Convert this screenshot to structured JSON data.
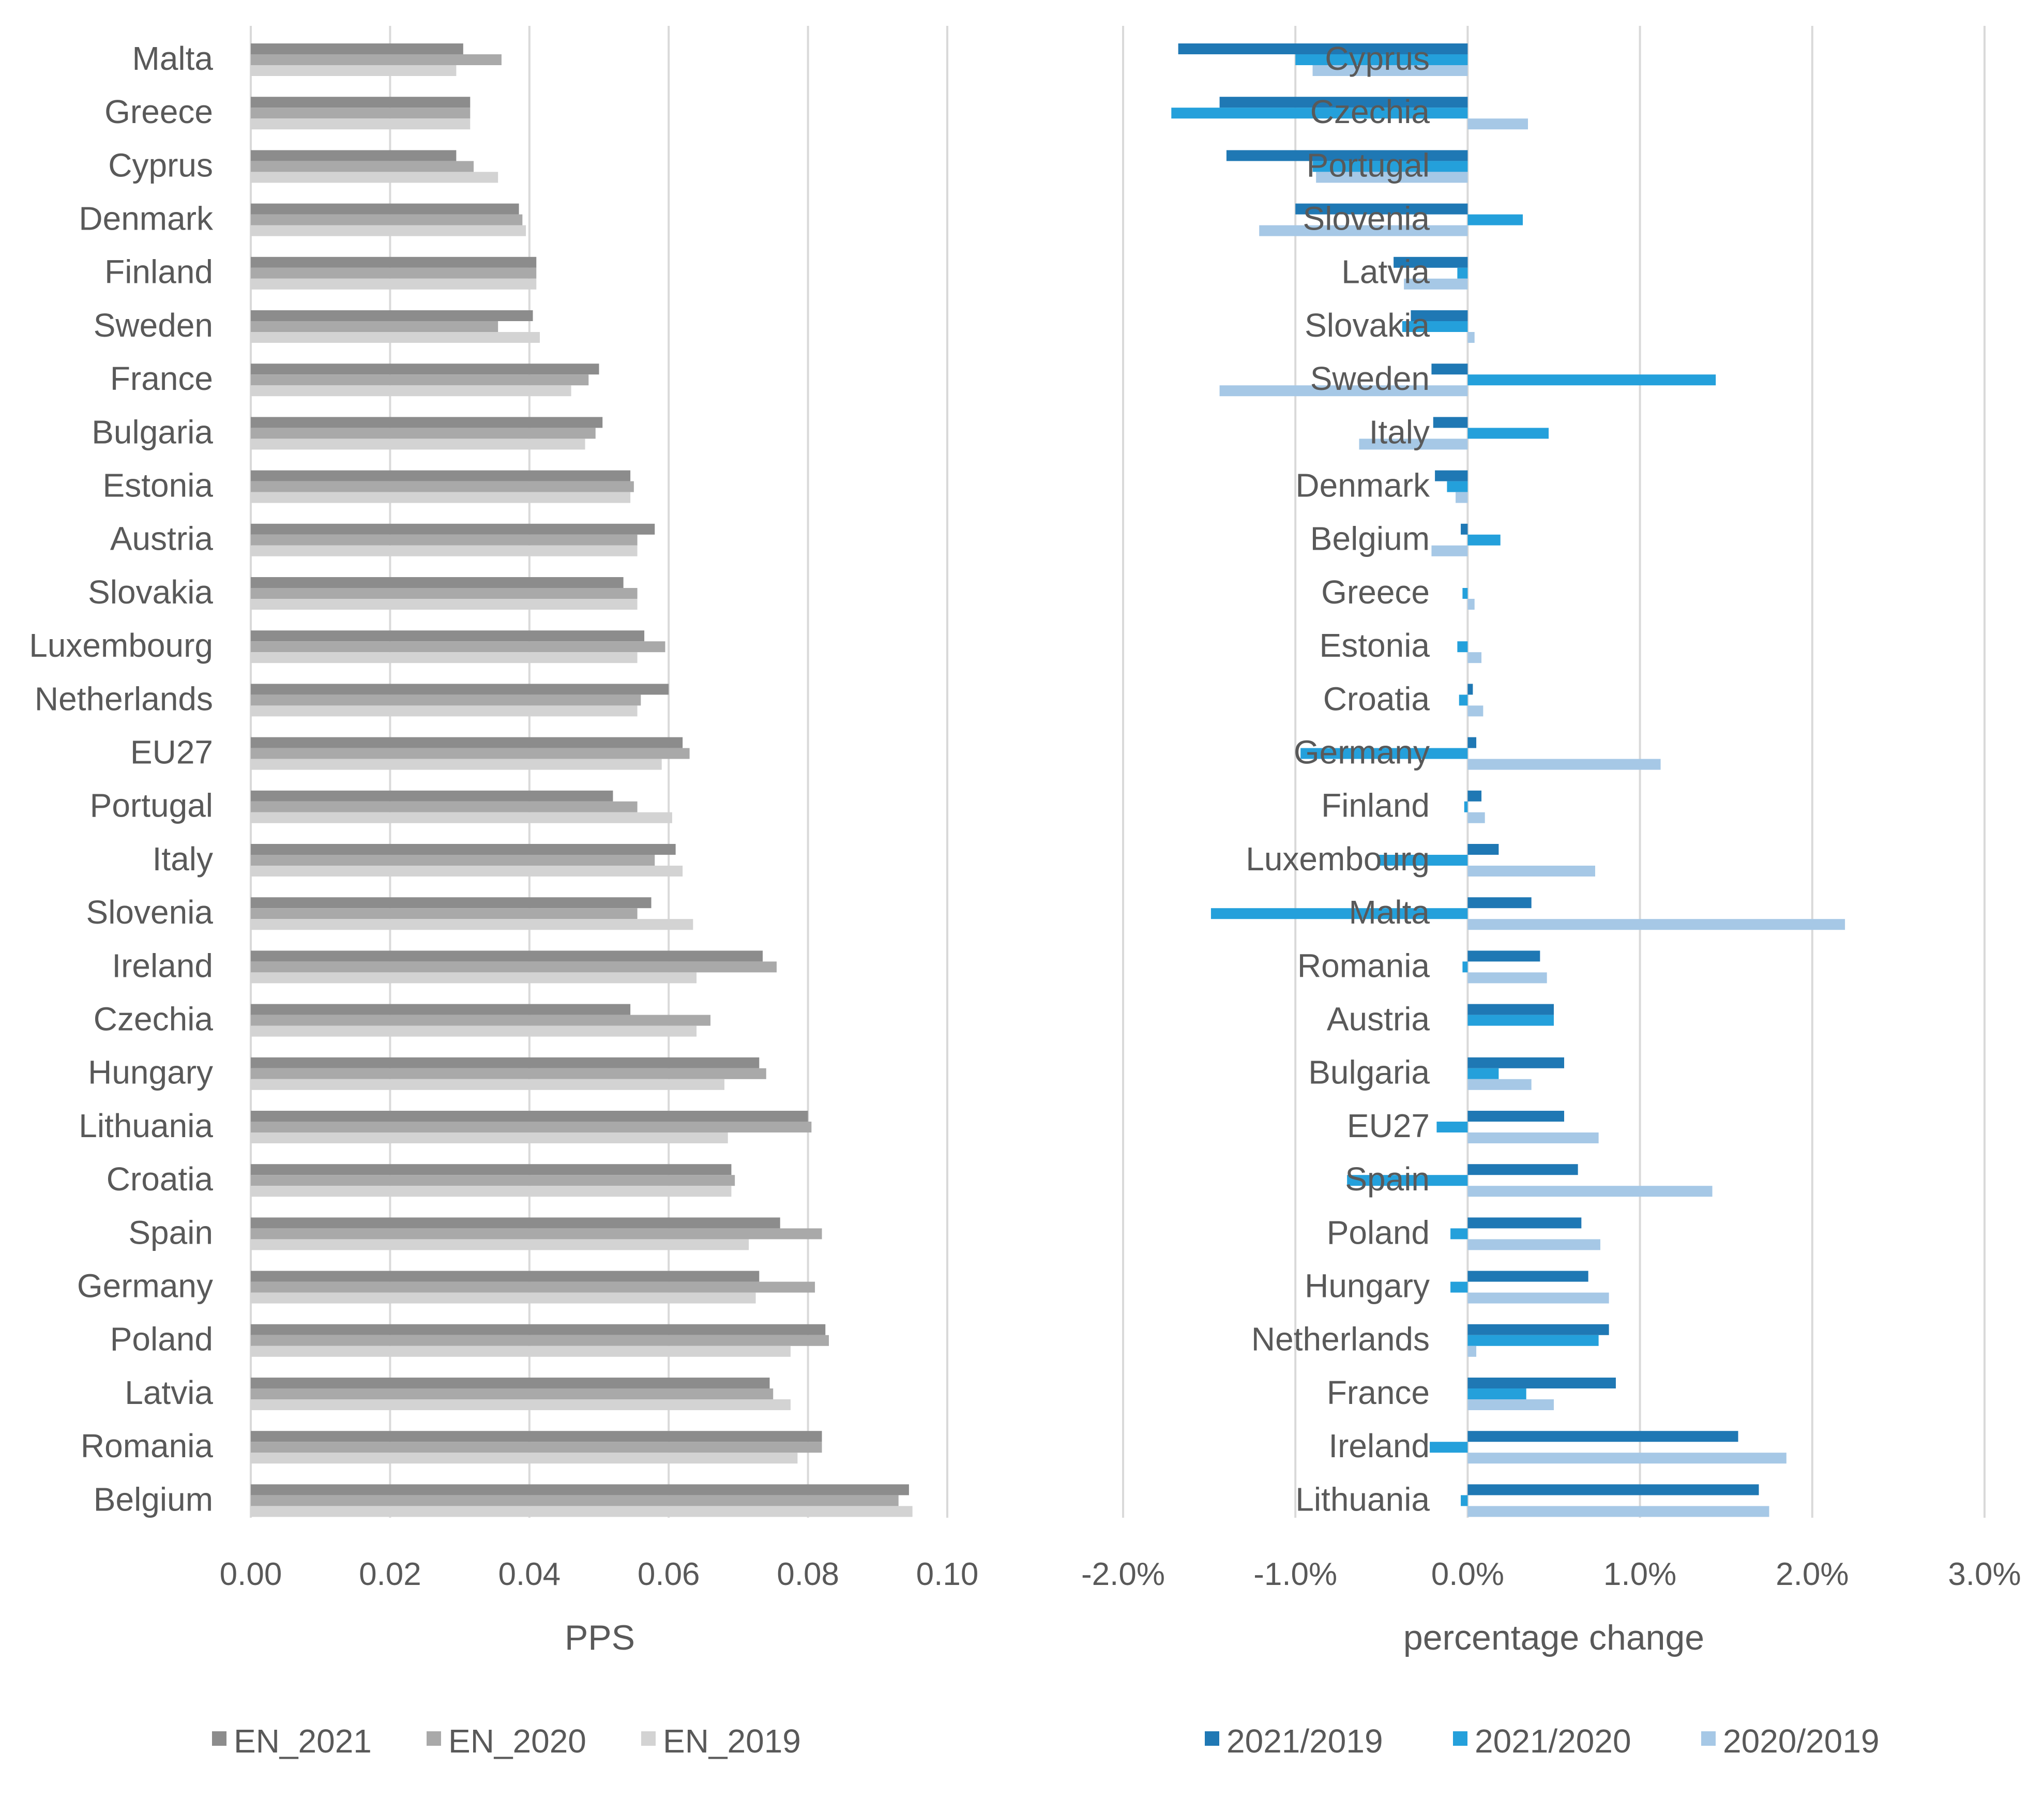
{
  "chart_data": [
    {
      "type": "bar",
      "orientation": "horizontal",
      "title": "",
      "xlabel": "PPS",
      "ylabel": "",
      "xlim": [
        0,
        0.1
      ],
      "xticks": [
        "0.00",
        "0.02",
        "0.04",
        "0.06",
        "0.08",
        "0.10"
      ],
      "grid": true,
      "legend_position": "bottom",
      "categories": [
        "Malta",
        "Greece",
        "Cyprus",
        "Denmark",
        "Finland",
        "Sweden",
        "France",
        "Bulgaria",
        "Estonia",
        "Austria",
        "Slovakia",
        "Luxembourg",
        "Netherlands",
        "EU27",
        "Portugal",
        "Italy",
        "Slovenia",
        "Ireland",
        "Czechia",
        "Hungary",
        "Lithuania",
        "Croatia",
        "Spain",
        "Germany",
        "Poland",
        "Latvia",
        "Romania",
        "Belgium"
      ],
      "series": [
        {
          "name": "EN_2021",
          "color": "#8c8c8c",
          "values": [
            0.0305,
            0.0315,
            0.0295,
            0.0385,
            0.041,
            0.0405,
            0.05,
            0.0505,
            0.0545,
            0.058,
            0.0535,
            0.0565,
            0.06,
            0.062,
            0.052,
            0.061,
            0.0575,
            0.0735,
            0.0545,
            0.073,
            0.08,
            0.069,
            0.076,
            0.073,
            0.0825,
            0.0745,
            0.082,
            0.0945
          ]
        },
        {
          "name": "EN_2020",
          "color": "#a9a9a9",
          "values": [
            0.036,
            0.0315,
            0.032,
            0.039,
            0.041,
            0.0355,
            0.0485,
            0.0495,
            0.055,
            0.0555,
            0.0555,
            0.0595,
            0.056,
            0.063,
            0.0555,
            0.058,
            0.0555,
            0.0755,
            0.066,
            0.074,
            0.0805,
            0.0695,
            0.082,
            0.081,
            0.083,
            0.075,
            0.082,
            0.093
          ]
        },
        {
          "name": "EN_2019",
          "color": "#d3d3d3",
          "values": [
            0.0295,
            0.0315,
            0.0355,
            0.0395,
            0.041,
            0.0415,
            0.046,
            0.048,
            0.0545,
            0.0555,
            0.0555,
            0.0555,
            0.0555,
            0.059,
            0.0605,
            0.062,
            0.0635,
            0.064,
            0.064,
            0.068,
            0.0685,
            0.069,
            0.0715,
            0.0725,
            0.0775,
            0.0775,
            0.0785,
            0.095
          ]
        }
      ]
    },
    {
      "type": "bar",
      "orientation": "horizontal",
      "title": "",
      "xlabel": "percentage change",
      "ylabel": "",
      "xlim": [
        -2.0,
        3.0
      ],
      "xticks": [
        "-2.0%",
        "-1.0%",
        "0.0%",
        "1.0%",
        "2.0%",
        "3.0%"
      ],
      "grid": true,
      "legend_position": "bottom",
      "categories": [
        "Cyprus",
        "Czechia",
        "Portugal",
        "Slovenia",
        "Latvia",
        "Slovakia",
        "Sweden",
        "Italy",
        "Denmark",
        "Belgium",
        "Greece",
        "Estonia",
        "Croatia",
        "Germany",
        "Finland",
        "Luxembourg",
        "Malta",
        "Romania",
        "Austria",
        "Bulgaria",
        "EU27",
        "Spain",
        "Poland",
        "Hungary",
        "Netherlands",
        "France",
        "Ireland",
        "Lithuania"
      ],
      "series": [
        {
          "name": "2021/2019",
          "color": "#1f78b4",
          "values": [
            -1.68,
            -1.44,
            -1.4,
            -1.0,
            -0.43,
            -0.33,
            -0.21,
            -0.2,
            -0.19,
            -0.04,
            0.0,
            0.0,
            0.03,
            0.05,
            0.08,
            0.18,
            0.37,
            0.42,
            0.5,
            0.56,
            0.56,
            0.64,
            0.66,
            0.7,
            0.82,
            0.86,
            1.57,
            1.69
          ]
        },
        {
          "name": "2021/2020",
          "color": "#24a0db",
          "values": [
            -1.0,
            -1.72,
            -0.9,
            0.32,
            -0.06,
            -0.38,
            1.44,
            0.47,
            -0.12,
            0.19,
            -0.03,
            -0.06,
            -0.05,
            -0.97,
            -0.02,
            -0.52,
            -1.49,
            -0.03,
            0.5,
            0.18,
            -0.18,
            -0.7,
            -0.1,
            -0.1,
            0.76,
            0.34,
            -0.22,
            -0.04
          ]
        },
        {
          "name": "2020/2019",
          "color": "#a6c8e6",
          "values": [
            -0.9,
            0.35,
            -0.88,
            -1.21,
            -0.37,
            0.04,
            -1.44,
            -0.63,
            -0.07,
            -0.21,
            0.04,
            0.08,
            0.09,
            1.12,
            0.1,
            0.74,
            2.19,
            0.46,
            0.0,
            0.37,
            0.76,
            1.42,
            0.77,
            0.82,
            0.05,
            0.5,
            1.85,
            1.75
          ]
        }
      ]
    }
  ]
}
